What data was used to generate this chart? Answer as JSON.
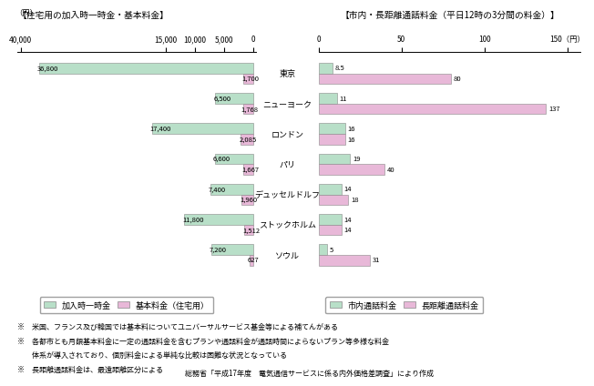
{
  "cities": [
    "東京",
    "ニューヨーク",
    "ロンドン",
    "パリ",
    "デュッセルドルフ",
    "ストックホルム",
    "ソウル"
  ],
  "left_chart": {
    "title": "【住宅用の加入時一時金・基本料金】",
    "yen_label": "（円）",
    "xtick_labels": [
      "40,000",
      "15,000",
      "10,000",
      "5,000",
      "0"
    ],
    "xtick_vals": [
      40000,
      15000,
      10000,
      5000,
      0
    ],
    "connection_fee": [
      36800,
      6500,
      17400,
      6600,
      7400,
      11800,
      7200
    ],
    "basic_fee": [
      1700,
      1768,
      2085,
      1667,
      1960,
      1512,
      627
    ],
    "connection_color": "#b8dfc8",
    "basic_color": "#e8b8d8",
    "legend_connection": "加入時一時金",
    "legend_basic": "基本料金（住宅用）"
  },
  "right_chart": {
    "title": "【市内・長距離通話料金（平日12時の3分間の料金）】",
    "xtick_labels": [
      "0",
      "50",
      "100",
      "150（円）"
    ],
    "xtick_vals": [
      0,
      50,
      100,
      150
    ],
    "local_call": [
      8.5,
      11,
      16,
      19,
      14,
      14,
      5
    ],
    "long_distance": [
      80,
      137,
      16,
      40,
      18,
      14,
      31
    ],
    "local_color": "#b8dfc8",
    "long_color": "#e8b8d8",
    "legend_local": "市内通話料金",
    "legend_long": "長距離通話料金"
  },
  "footnote1": "※　米国、フランス及び韓国では基本料についてユニバーサルサービス基金等による補てんがある",
  "footnote2": "※　各都市とも月額基本料金に一定の通話料金を含むプランや通話料金が通話時間によらないプラン等多様な料金",
  "footnote2b": "　　体系が導入されており、個別料金による単純な比較は困難な状況となっている",
  "footnote3": "※　長距離通話料金は、最遠距離区分による",
  "source": "総務省「平成17年度　電気通信サービスに係る内外価格差調査」により作成",
  "bg_color": "#ffffff"
}
